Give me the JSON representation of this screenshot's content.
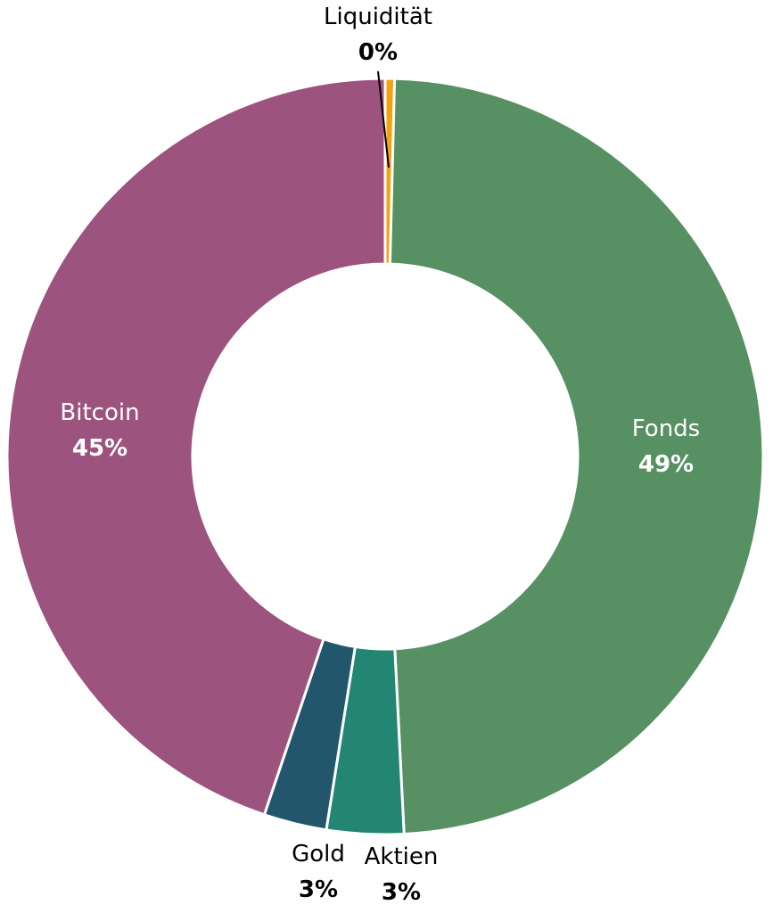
{
  "chart_data": {
    "type": "pie",
    "variant": "donut",
    "slices": [
      {
        "label": "Liquidität",
        "value": 0.4,
        "display": "0%",
        "color": "#F5A20F",
        "label_color": "#000000"
      },
      {
        "label": "Fonds",
        "value": 49,
        "display": "49%",
        "color": "#579062",
        "label_color": "#FFFFFF"
      },
      {
        "label": "Aktien",
        "value": 3.3,
        "display": "3%",
        "color": "#238672",
        "label_color": "#000000"
      },
      {
        "label": "Gold",
        "value": 2.7,
        "display": "3%",
        "color": "#22566C",
        "label_color": "#000000"
      },
      {
        "label": "Bitcoin",
        "value": 45,
        "display": "45%",
        "color": "#9C547F",
        "label_color": "#FFFFFF"
      }
    ],
    "start_angle_deg": 0,
    "direction": "clockwise",
    "legend": "none",
    "separator_color": "#FFFFFF"
  }
}
